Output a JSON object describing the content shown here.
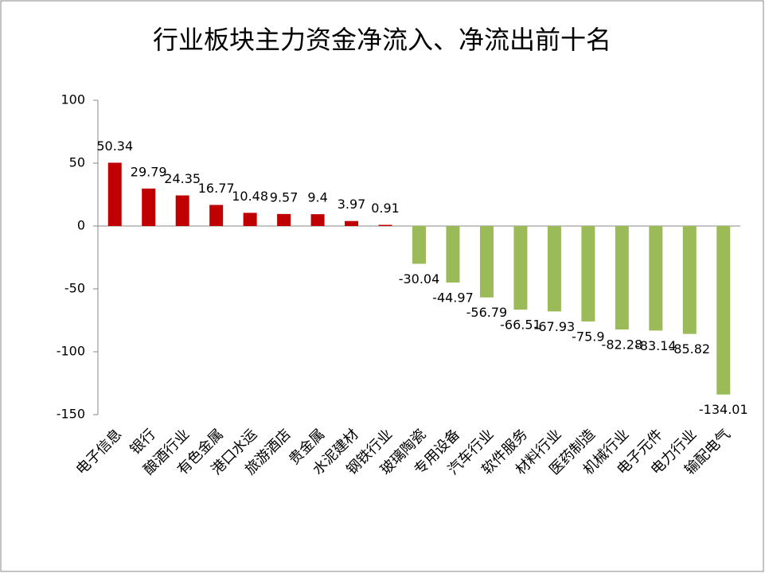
{
  "chart_data": {
    "type": "bar",
    "title": "行业板块主力资金净流入、净流出前十名",
    "categories": [
      "电子信息",
      "银行",
      "酿酒行业",
      "有色金属",
      "港口水运",
      "旅游酒店",
      "贵金属",
      "水泥建材",
      "钢铁行业",
      "玻璃陶瓷",
      "专用设备",
      "汽车行业",
      "软件服务",
      "材料行业",
      "医药制造",
      "机械行业",
      "电子元件",
      "电力行业",
      "输配电气"
    ],
    "values": [
      50.34,
      29.79,
      24.35,
      16.77,
      10.48,
      9.57,
      9.4,
      3.97,
      0.91,
      -30.04,
      -44.97,
      -56.79,
      -66.51,
      -67.93,
      -75.9,
      -82.28,
      -83.14,
      -85.82,
      -134.01
    ],
    "positive_color": "#c00000",
    "negative_color": "#9bbb59",
    "ylim": [
      -150,
      100
    ],
    "yticks": [
      -150,
      -100,
      -50,
      0,
      50,
      100
    ],
    "grid": false
  }
}
